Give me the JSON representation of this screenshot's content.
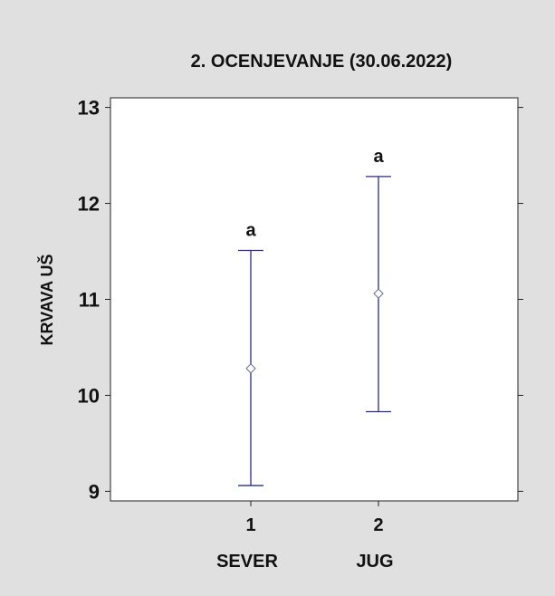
{
  "chart_data": {
    "type": "scatter",
    "title": "2. OCENJEVANJE (30.06.2022)",
    "ylabel": "KRVAVA UŠ",
    "xlabel": "",
    "ylim": [
      8.9,
      13.1
    ],
    "yticks": [
      9,
      10,
      11,
      12,
      13
    ],
    "grid": false,
    "categories": [
      {
        "tick": "1",
        "name": "SEVER"
      },
      {
        "tick": "2",
        "name": "JUG"
      }
    ],
    "series": [
      {
        "points": [
          {
            "mean": 10.28,
            "lower": 9.06,
            "upper": 11.51,
            "label": "a"
          },
          {
            "mean": 11.06,
            "lower": 9.83,
            "upper": 12.28,
            "label": "a"
          }
        ]
      }
    ],
    "colors": {
      "background": "#e0e0e0",
      "plot_background": "#ffffff",
      "errorbar": "#2b2b8c",
      "marker": "#6a6a8a",
      "text": "#111111"
    }
  }
}
